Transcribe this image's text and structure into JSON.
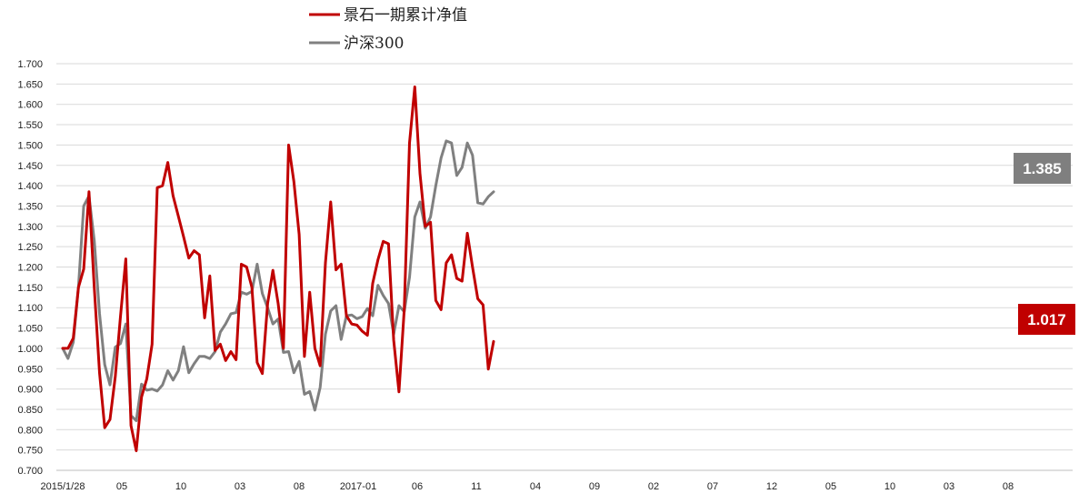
{
  "chart_data": {
    "type": "line",
    "ylim": [
      0.7,
      1.7
    ],
    "y_tick_step": 0.05,
    "grid": true,
    "legend_position": "top-left",
    "x_tick_labels": [
      "2015/1/28",
      "05",
      "10",
      "03",
      "08",
      "2017-01",
      "06",
      "11",
      "04",
      "09",
      "02",
      "07",
      "12",
      "05",
      "10",
      "03",
      "08"
    ],
    "series": [
      {
        "name": "景石一期累计净值",
        "color": "#C00000",
        "end_label": "1.017",
        "values": [
          1.0,
          1.0,
          1.025,
          1.15,
          1.195,
          1.385,
          1.15,
          0.94,
          0.805,
          0.825,
          0.93,
          1.08,
          1.22,
          0.81,
          0.748,
          0.88,
          0.925,
          1.01,
          1.395,
          1.4,
          1.457,
          1.375,
          1.325,
          1.275,
          1.222,
          1.24,
          1.23,
          1.075,
          1.178,
          0.995,
          1.01,
          0.97,
          0.992,
          0.972,
          1.207,
          1.2,
          1.15,
          0.965,
          0.938,
          1.11,
          1.192,
          1.11,
          1.0,
          1.5,
          1.41,
          1.28,
          0.98,
          1.138,
          1.0,
          0.957,
          1.21,
          1.36,
          1.193,
          1.207,
          1.08,
          1.06,
          1.057,
          1.042,
          1.032,
          1.16,
          1.218,
          1.263,
          1.257,
          1.02,
          0.893,
          1.095,
          1.505,
          1.643,
          1.43,
          1.3,
          1.31,
          1.118,
          1.095,
          1.21,
          1.23,
          1.172,
          1.165,
          1.283,
          1.2,
          1.122,
          1.107,
          0.949,
          1.017
        ]
      },
      {
        "name": "沪深300",
        "color": "#808080",
        "end_label": "1.385",
        "values": [
          1.0,
          0.975,
          1.015,
          1.15,
          1.35,
          1.375,
          1.265,
          1.085,
          0.96,
          0.91,
          1.003,
          1.012,
          1.06,
          0.835,
          0.822,
          0.912,
          0.897,
          0.9,
          0.895,
          0.91,
          0.945,
          0.922,
          0.945,
          1.004,
          0.94,
          0.962,
          0.98,
          0.98,
          0.975,
          0.992,
          1.04,
          1.06,
          1.085,
          1.088,
          1.138,
          1.133,
          1.14,
          1.207,
          1.135,
          1.1,
          1.06,
          1.072,
          0.99,
          0.992,
          0.94,
          0.968,
          0.887,
          0.894,
          0.848,
          0.904,
          1.035,
          1.092,
          1.105,
          1.022,
          1.08,
          1.082,
          1.073,
          1.078,
          1.098,
          1.08,
          1.155,
          1.13,
          1.11,
          1.035,
          1.105,
          1.09,
          1.175,
          1.323,
          1.36,
          1.295,
          1.323,
          1.4,
          1.468,
          1.51,
          1.505,
          1.425,
          1.445,
          1.505,
          1.475,
          1.358,
          1.355,
          1.373,
          1.385
        ]
      }
    ]
  }
}
